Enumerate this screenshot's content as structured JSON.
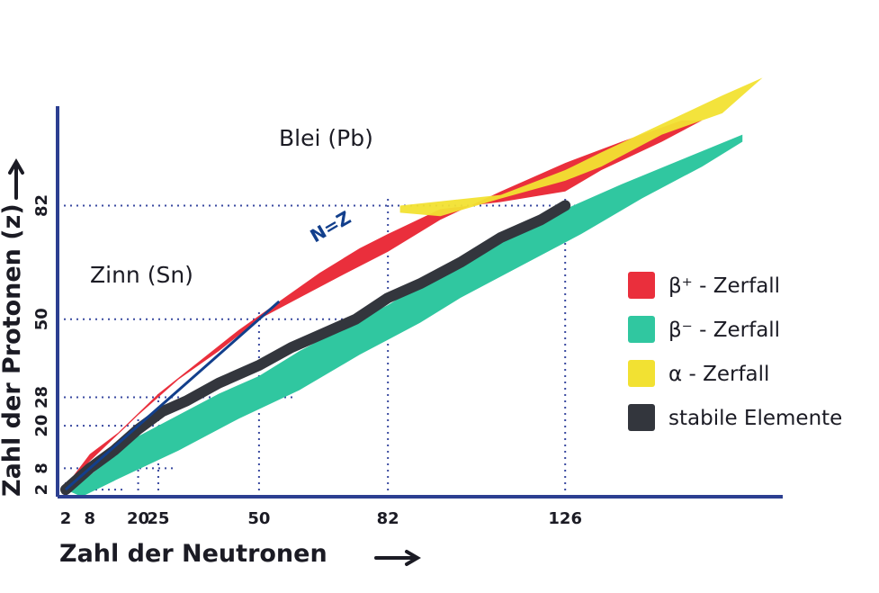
{
  "chart_data": {
    "type": "scatter",
    "title": "",
    "xlabel": "Zahl der Neutronen",
    "ylabel": "Zahl der Protonen (z)",
    "x_ticks": [
      "2",
      "8",
      "20",
      "25",
      "50",
      "82",
      "126"
    ],
    "y_ticks": [
      "2",
      "8",
      "20",
      "28",
      "50",
      "82"
    ],
    "xlim": [
      0,
      180
    ],
    "ylim": [
      0,
      110
    ],
    "grid": "dotted reference lines at magic numbers",
    "annotations": {
      "lead": "Blei (Pb)",
      "tin": "Zinn (Sn)",
      "nz_line": "N=Z"
    },
    "legend_position": "right",
    "series": [
      {
        "name": "β⁺ - Zerfall",
        "color": "#ea2f3c",
        "lower_boundary": [
          [
            2,
            3
          ],
          [
            8,
            10
          ],
          [
            20,
            23
          ],
          [
            30,
            33
          ],
          [
            40,
            41
          ],
          [
            50,
            50
          ],
          [
            60,
            56
          ],
          [
            70,
            62
          ],
          [
            82,
            69
          ],
          [
            95,
            78
          ],
          [
            110,
            86
          ],
          [
            126,
            94
          ],
          [
            140,
            100
          ],
          [
            155,
            106
          ]
        ],
        "upper_boundary": [
          [
            2,
            3
          ],
          [
            8,
            12
          ],
          [
            15,
            18
          ],
          [
            25,
            29
          ],
          [
            35,
            38
          ],
          [
            45,
            47
          ],
          [
            55,
            55
          ],
          [
            65,
            63
          ],
          [
            75,
            70
          ],
          [
            82,
            74
          ],
          [
            95,
            81
          ],
          [
            110,
            83
          ],
          [
            126,
            86
          ],
          [
            135,
            92
          ],
          [
            150,
            100
          ],
          [
            160,
            106
          ]
        ]
      },
      {
        "name": "β⁻ - Zerfall",
        "color": "#30c7a0",
        "lower_boundary": [
          [
            6,
            0
          ],
          [
            15,
            5
          ],
          [
            30,
            13
          ],
          [
            45,
            22
          ],
          [
            60,
            30
          ],
          [
            75,
            40
          ],
          [
            90,
            49
          ],
          [
            100,
            56
          ],
          [
            115,
            65
          ],
          [
            130,
            74
          ],
          [
            145,
            84
          ],
          [
            160,
            93
          ],
          [
            170,
            100
          ]
        ],
        "upper_boundary": [
          [
            2,
            2
          ],
          [
            8,
            6
          ],
          [
            20,
            17
          ],
          [
            30,
            23
          ],
          [
            40,
            29
          ],
          [
            50,
            34
          ],
          [
            60,
            41
          ],
          [
            70,
            47
          ],
          [
            82,
            54
          ],
          [
            95,
            63
          ],
          [
            110,
            72
          ],
          [
            126,
            81
          ],
          [
            140,
            88
          ],
          [
            155,
            95
          ],
          [
            170,
            102
          ]
        ]
      },
      {
        "name": "α - Zerfall",
        "color": "#f2e132",
        "lower_boundary": [
          [
            85,
            80
          ],
          [
            95,
            79
          ],
          [
            110,
            84
          ],
          [
            126,
            89
          ],
          [
            135,
            93
          ],
          [
            150,
            102
          ],
          [
            165,
            108
          ]
        ],
        "upper_boundary": [
          [
            85,
            82
          ],
          [
            110,
            85
          ],
          [
            126,
            92
          ],
          [
            135,
            97
          ],
          [
            150,
            105
          ],
          [
            165,
            113
          ],
          [
            175,
            118
          ]
        ]
      },
      {
        "name": "stabile Elemente",
        "color": "#33363d",
        "band": [
          [
            2,
            2
          ],
          [
            8,
            8
          ],
          [
            14,
            13
          ],
          [
            20,
            19
          ],
          [
            26,
            24
          ],
          [
            32,
            27
          ],
          [
            40,
            32
          ],
          [
            50,
            37
          ],
          [
            58,
            42
          ],
          [
            66,
            46
          ],
          [
            74,
            50
          ],
          [
            82,
            56
          ],
          [
            90,
            60
          ],
          [
            100,
            66
          ],
          [
            110,
            73
          ],
          [
            120,
            78
          ],
          [
            126,
            82
          ]
        ]
      }
    ]
  },
  "legend": {
    "items": [
      {
        "label": "β⁺ - Zerfall",
        "color": "#ea2f3c"
      },
      {
        "label": "β⁻ - Zerfall",
        "color": "#30c7a0"
      },
      {
        "label": "α - Zerfall",
        "color": "#f2e132"
      },
      {
        "label": "stabile Elemente",
        "color": "#33363d"
      }
    ]
  },
  "colors": {
    "axis": "#2c3f91",
    "grid": "#3a4aa0",
    "nz_line": "#123f8c",
    "text": "#1b1b24"
  }
}
